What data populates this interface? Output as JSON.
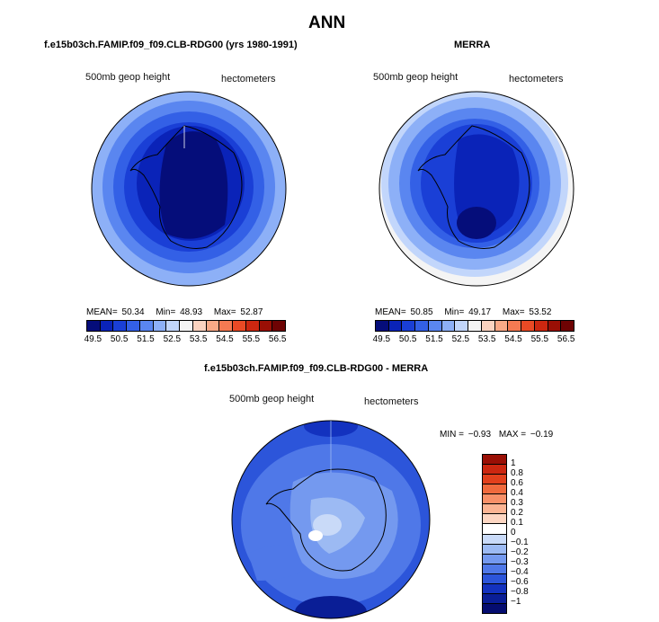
{
  "main_title": "ANN",
  "panels": [
    {
      "title": "f.e15b03ch.FAMIP.f09_f09.CLB-RDG00 (yrs 1980-1991)",
      "left_label": "500mb geop height",
      "right_label": "hectometers",
      "mean_label": "MEAN=",
      "mean": "50.34",
      "min_label": "Min=",
      "min": "48.93",
      "max_label": "Max=",
      "max": "52.87"
    },
    {
      "title": "MERRA",
      "left_label": "500mb geop height",
      "right_label": "hectometers",
      "mean_label": "MEAN=",
      "mean": "50.85",
      "min_label": "Min=",
      "min": "49.17",
      "max_label": "Max=",
      "max": "53.52"
    }
  ],
  "diff_panel": {
    "title": "f.e15b03ch.FAMIP.f09_f09.CLB-RDG00 - MERRA",
    "left_label": "500mb geop height",
    "right_label": "hectometers",
    "min_label": "MIN =",
    "min": "−0.93",
    "max_label": "MAX =",
    "max": "−0.19"
  },
  "colorbar": {
    "colors": [
      "#050d7a",
      "#0a23b8",
      "#1a3fd6",
      "#3360e6",
      "#5a86f0",
      "#8db0f7",
      "#c2d6fb",
      "#f4f4f4",
      "#fbd3c0",
      "#f9a987",
      "#f57a52",
      "#ea4a25",
      "#cc2710",
      "#9a0f05",
      "#6e0303"
    ],
    "ticks": [
      "49.5",
      "50.5",
      "51.5",
      "52.5",
      "53.5",
      "54.5",
      "55.5",
      "56.5"
    ]
  },
  "diff_colorbar": {
    "colors": [
      "#9a0f05",
      "#cc2710",
      "#e2401c",
      "#f06a3d",
      "#f89068",
      "#fbb493",
      "#fdd6c2",
      "#ffffff",
      "#c9daf8",
      "#9cbaf3",
      "#7499ef",
      "#4f78e8",
      "#2c55da",
      "#1332bf",
      "#0a1e96",
      "#050d70"
    ],
    "ticks": [
      "1",
      "0.8",
      "0.6",
      "0.4",
      "0.3",
      "0.2",
      "0.1",
      "0",
      "−0.1",
      "−0.2",
      "−0.3",
      "−0.4",
      "−0.6",
      "−0.8",
      "−1"
    ]
  }
}
